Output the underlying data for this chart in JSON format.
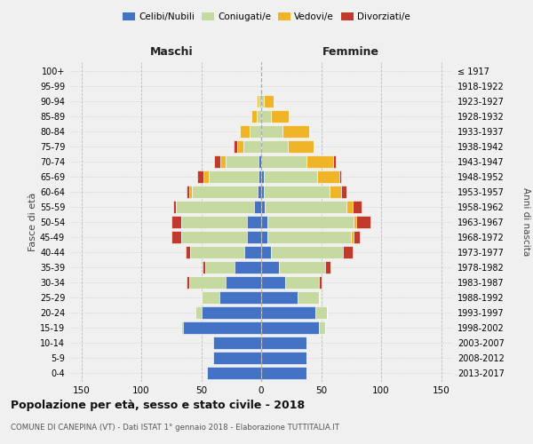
{
  "age_groups": [
    "0-4",
    "5-9",
    "10-14",
    "15-19",
    "20-24",
    "25-29",
    "30-34",
    "35-39",
    "40-44",
    "45-49",
    "50-54",
    "55-59",
    "60-64",
    "65-69",
    "70-74",
    "75-79",
    "80-84",
    "85-89",
    "90-94",
    "95-99",
    "100+"
  ],
  "birth_years": [
    "2013-2017",
    "2008-2012",
    "2003-2007",
    "1998-2002",
    "1993-1997",
    "1988-1992",
    "1983-1987",
    "1978-1982",
    "1973-1977",
    "1968-1972",
    "1963-1967",
    "1958-1962",
    "1953-1957",
    "1948-1952",
    "1943-1947",
    "1938-1942",
    "1933-1937",
    "1928-1932",
    "1923-1927",
    "1918-1922",
    "≤ 1917"
  ],
  "colors": {
    "celibe": "#4472C4",
    "coniugato": "#c5d9a0",
    "vedovo": "#f0b429",
    "divorziato": "#c0392b"
  },
  "maschi": {
    "celibe": [
      45,
      40,
      40,
      65,
      50,
      35,
      30,
      22,
      14,
      12,
      12,
      6,
      3,
      2,
      2,
      0,
      0,
      0,
      0,
      0,
      0
    ],
    "coniugato": [
      0,
      0,
      0,
      2,
      5,
      15,
      30,
      25,
      45,
      55,
      55,
      65,
      55,
      42,
      28,
      15,
      10,
      4,
      2,
      0,
      0
    ],
    "vedovo": [
      0,
      0,
      0,
      0,
      0,
      0,
      0,
      0,
      0,
      0,
      0,
      0,
      2,
      4,
      4,
      5,
      8,
      4,
      2,
      0,
      0
    ],
    "divorziato": [
      0,
      0,
      0,
      0,
      0,
      0,
      2,
      2,
      4,
      8,
      8,
      2,
      2,
      5,
      5,
      3,
      0,
      0,
      0,
      0,
      0
    ]
  },
  "femmine": {
    "nubile": [
      38,
      38,
      38,
      48,
      45,
      30,
      20,
      15,
      8,
      5,
      5,
      3,
      2,
      2,
      0,
      0,
      0,
      0,
      0,
      0,
      0
    ],
    "coniugata": [
      0,
      0,
      0,
      5,
      10,
      18,
      28,
      38,
      60,
      70,
      72,
      68,
      55,
      45,
      38,
      22,
      18,
      8,
      2,
      0,
      0
    ],
    "vedova": [
      0,
      0,
      0,
      0,
      0,
      0,
      0,
      0,
      0,
      2,
      2,
      5,
      10,
      18,
      22,
      22,
      22,
      15,
      8,
      0,
      0
    ],
    "divorziata": [
      0,
      0,
      0,
      0,
      0,
      0,
      2,
      5,
      8,
      5,
      12,
      8,
      4,
      2,
      2,
      0,
      0,
      0,
      0,
      0,
      0
    ]
  },
  "xlim": 160,
  "title": "Popolazione per età, sesso e stato civile - 2018",
  "subtitle": "COMUNE DI CANEPINA (VT) - Dati ISTAT 1° gennaio 2018 - Elaborazione TUTTITALIA.IT",
  "xlabel_left": "Maschi",
  "xlabel_right": "Femmine",
  "ylabel": "Fasce di età",
  "ylabel_right": "Anni di nascita",
  "bg_color": "#f0f0f0"
}
